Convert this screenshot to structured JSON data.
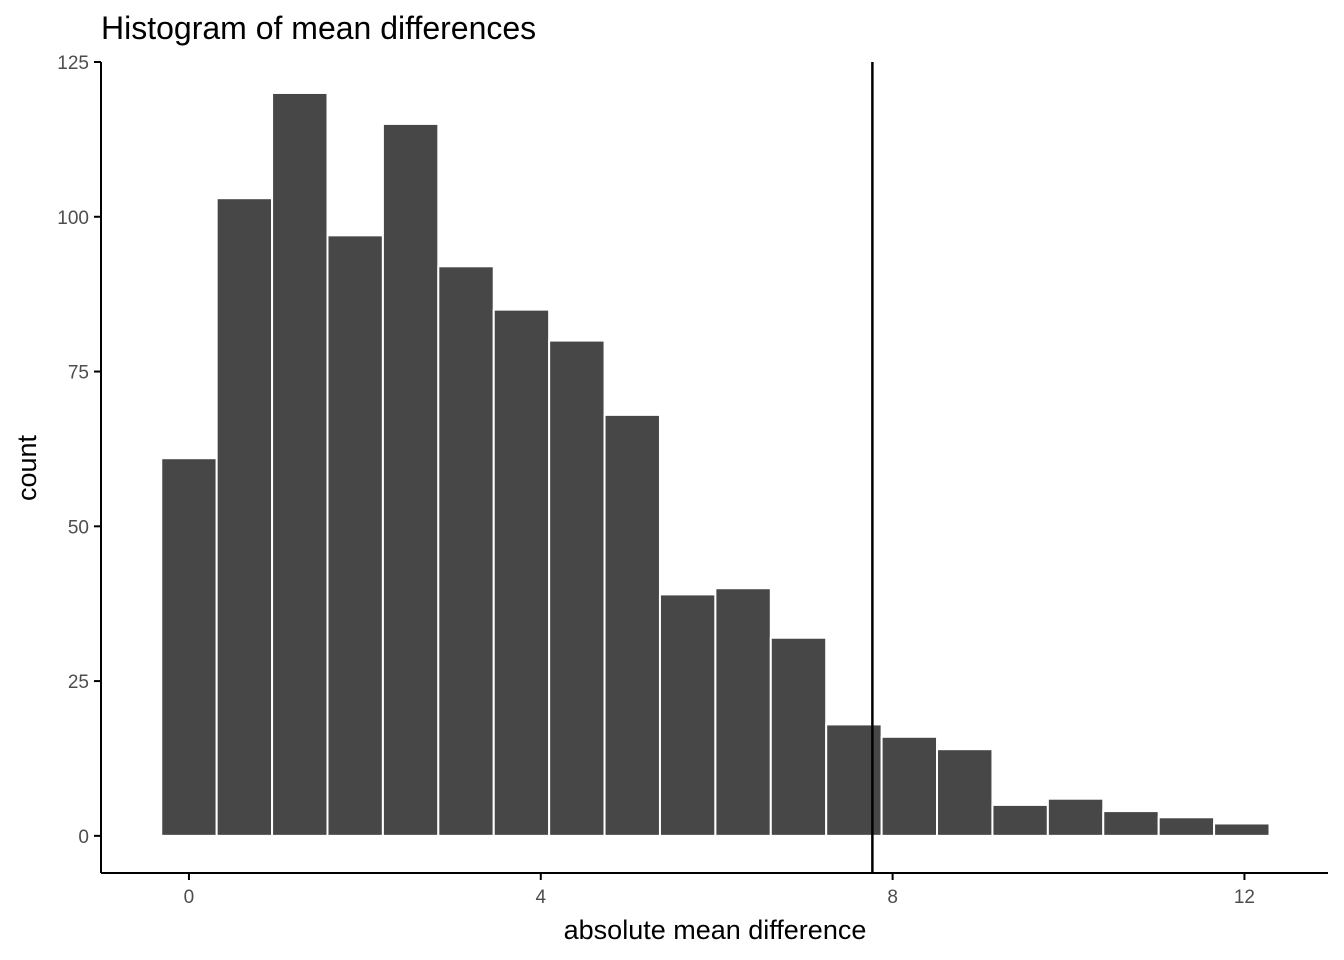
{
  "chart_data": {
    "type": "bar",
    "subtype": "histogram",
    "title": "Histogram of mean differences",
    "xlabel": "absolute mean difference",
    "ylabel": "count",
    "xlim": [
      -1,
      12.95
    ],
    "ylim": [
      -6,
      125
    ],
    "x_ticks": [
      0,
      4,
      8,
      12
    ],
    "y_ticks": [
      0,
      25,
      50,
      75,
      100,
      125
    ],
    "bin_width": 0.63,
    "bin_centers": [
      0,
      0.63,
      1.26,
      1.89,
      2.52,
      3.15,
      3.78,
      4.41,
      5.04,
      5.67,
      6.3,
      6.93,
      7.56,
      8.19,
      8.82,
      9.45,
      10.08,
      10.71,
      11.34,
      11.97
    ],
    "values": [
      61,
      103,
      120,
      97,
      115,
      92,
      85,
      80,
      68,
      39,
      40,
      32,
      18,
      16,
      14,
      5,
      6,
      4,
      3,
      2
    ],
    "reference_line": {
      "x": 7.77
    },
    "grid": false,
    "legend": "none",
    "colors": {
      "bar_fill": "#474747",
      "bar_edge": "#ffffff",
      "axis": "#000000",
      "tick_label": "#4d4d4d",
      "reference_line": "#000000"
    }
  }
}
